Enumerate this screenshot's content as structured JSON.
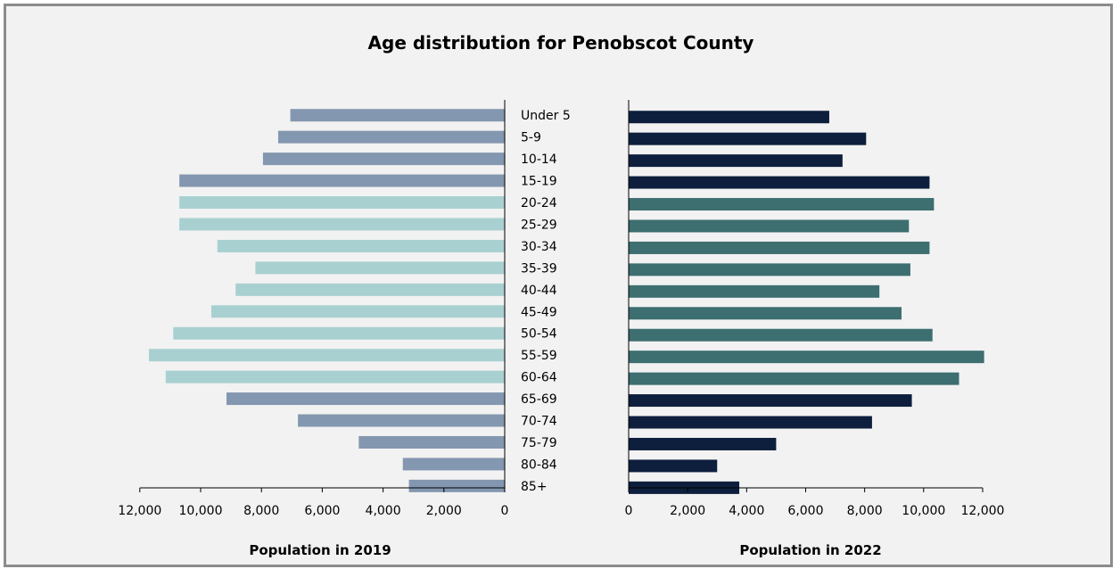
{
  "chart_data": {
    "type": "bar",
    "title": "Age distribution for Penobscot County",
    "categories": [
      "Under 5",
      "5-9",
      "10-14",
      "15-19",
      "20-24",
      "25-29",
      "30-34",
      "35-39",
      "40-44",
      "45-49",
      "50-54",
      "55-59",
      "60-64",
      "65-69",
      "70-74",
      "75-79",
      "80-84",
      "85+"
    ],
    "series": [
      {
        "name": "Population in 2019",
        "values": [
          7050,
          7450,
          7950,
          10700,
          10700,
          10700,
          9450,
          8200,
          8850,
          9650,
          10900,
          11700,
          11150,
          9150,
          6800,
          4800,
          3350,
          3150
        ],
        "colors": [
          "#8497b0",
          "#8497b0",
          "#8497b0",
          "#8497b0",
          "#a9d0d0",
          "#a9d0d0",
          "#a9d0d0",
          "#a9d0d0",
          "#a9d0d0",
          "#a9d0d0",
          "#a9d0d0",
          "#a9d0d0",
          "#a9d0d0",
          "#8497b0",
          "#8497b0",
          "#8497b0",
          "#8497b0",
          "#8497b0"
        ]
      },
      {
        "name": "Population in 2022",
        "values": [
          6800,
          8050,
          7250,
          10200,
          10350,
          9500,
          10200,
          9550,
          8500,
          9250,
          10300,
          12050,
          11200,
          9600,
          8250,
          5000,
          3000,
          3750
        ],
        "colors": [
          "#0e1f3d",
          "#0e1f3d",
          "#0e1f3d",
          "#0e1f3d",
          "#3d6e70",
          "#3d6e70",
          "#3d6e70",
          "#3d6e70",
          "#3d6e70",
          "#3d6e70",
          "#3d6e70",
          "#3d6e70",
          "#3d6e70",
          "#0e1f3d",
          "#0e1f3d",
          "#0e1f3d",
          "#0e1f3d",
          "#0e1f3d"
        ]
      }
    ],
    "left_axis": {
      "label": "Population in 2019",
      "ticks": [
        12000,
        10000,
        8000,
        6000,
        4000,
        2000,
        0
      ],
      "tick_labels": [
        "12,000",
        "10,000",
        "8,000",
        "6,000",
        "4,000",
        "2,000",
        "0"
      ],
      "range": [
        0,
        12500
      ],
      "direction": "reversed"
    },
    "right_axis": {
      "label": "Population in 2022",
      "ticks": [
        0,
        2000,
        4000,
        6000,
        8000,
        10000,
        12000
      ],
      "tick_labels": [
        "0",
        "2,000",
        "4,000",
        "6,000",
        "8,000",
        "10,000",
        "12,000"
      ],
      "range": [
        0,
        12000
      ]
    },
    "grid": false,
    "legend": "none"
  }
}
